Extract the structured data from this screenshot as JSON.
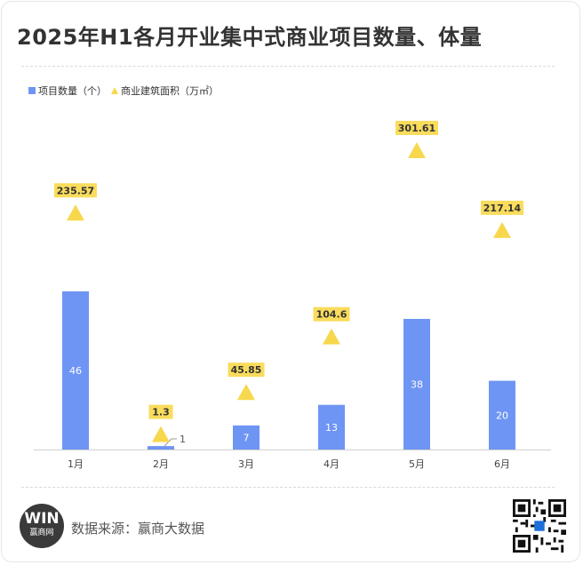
{
  "title": "2025年H1各月开业集中式商业项目数量、体量",
  "legend": {
    "bar_label": "项目数量（个）",
    "marker_label": "商业建筑面积（万㎡）"
  },
  "colors": {
    "bar": "#6f95f4",
    "marker": "#f7d84d",
    "marker_label_bg": "#f9dc5c"
  },
  "source": "数据来源：赢商大数据",
  "logo": {
    "mark": "WIN",
    "name": "赢商网"
  },
  "chart_data": {
    "type": "bar",
    "categories": [
      "1月",
      "2月",
      "3月",
      "4月",
      "5月",
      "6月"
    ],
    "series": [
      {
        "name": "项目数量（个）",
        "type": "bar",
        "values": [
          46,
          1,
          7,
          13,
          38,
          20
        ]
      },
      {
        "name": "商业建筑面积（万㎡）",
        "type": "scatter",
        "marker": "triangle",
        "values": [
          235.57,
          1.3,
          45.85,
          104.6,
          301.61,
          217.14
        ]
      }
    ],
    "value_labels": {
      "bars": [
        "46",
        "1",
        "7",
        "13",
        "38",
        "20"
      ],
      "markers": [
        "235.57",
        "1.3",
        "45.85",
        "104.6",
        "301.61",
        "217.14"
      ]
    },
    "legend_position": "top-left",
    "grid": false
  }
}
